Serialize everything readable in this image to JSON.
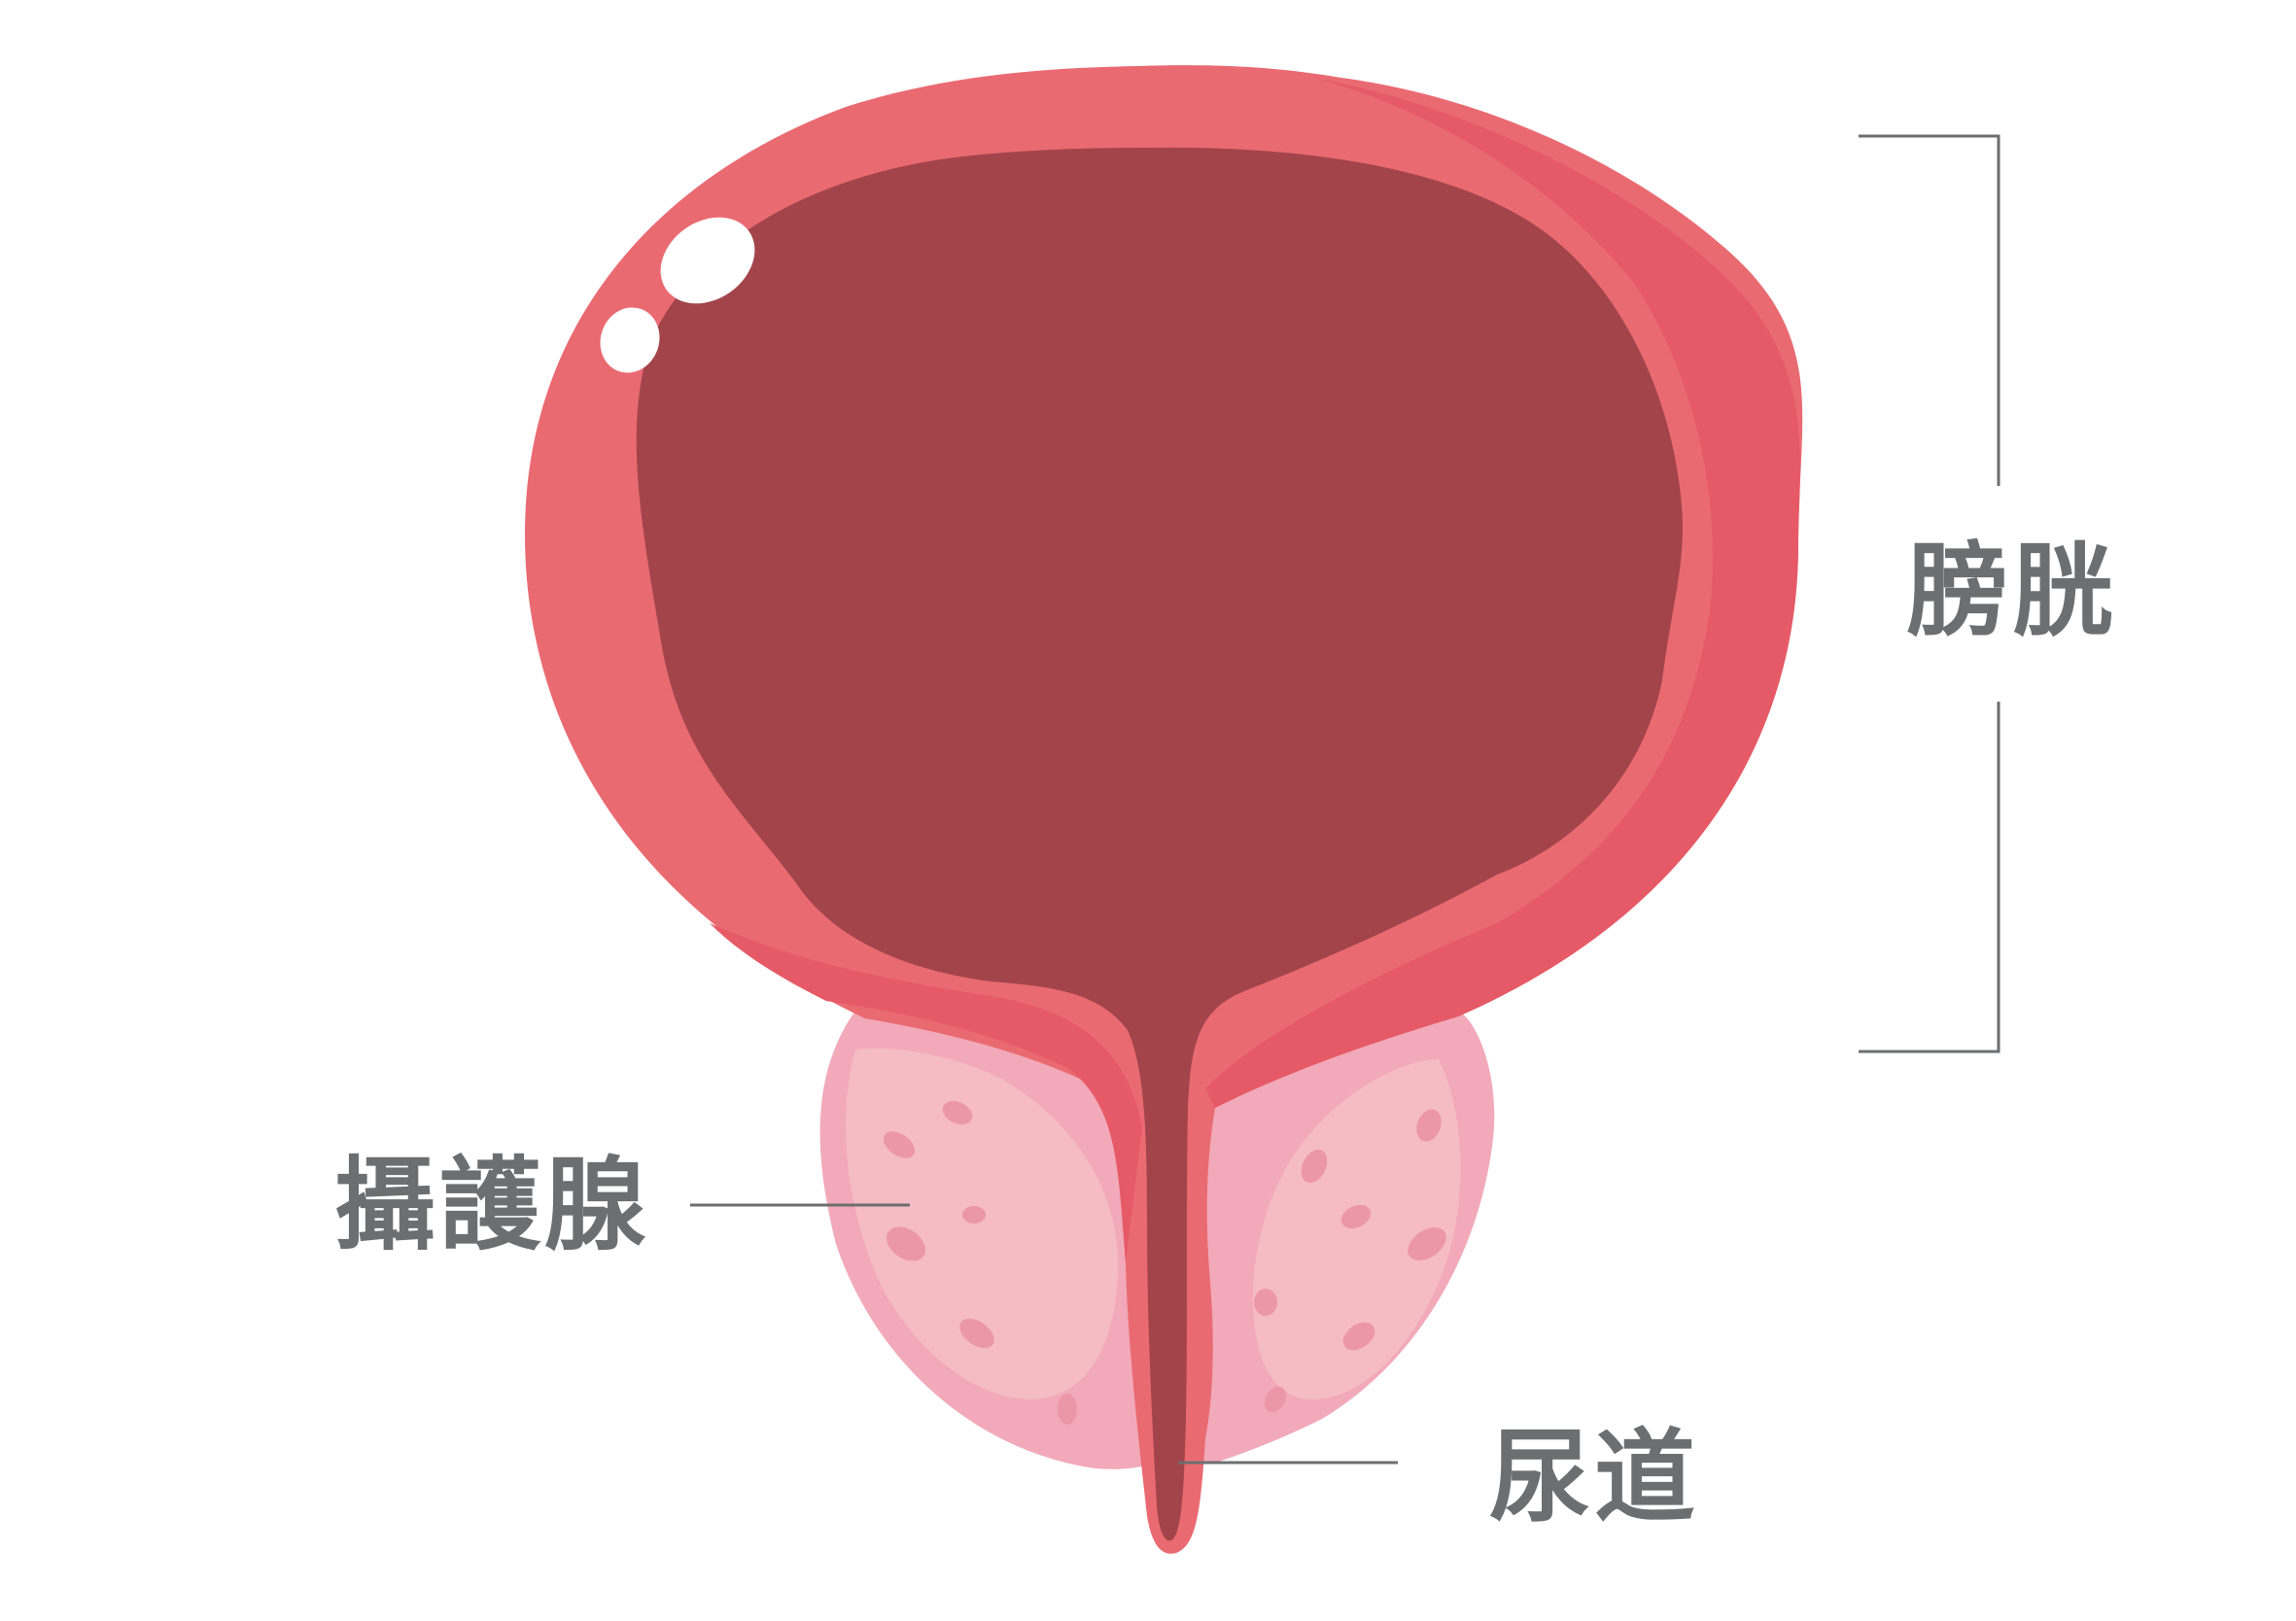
{
  "labels": {
    "bladder": "膀胱",
    "prostate": "攝護腺",
    "urethra": "尿道"
  },
  "colors": {
    "bladder_wall": "#ea6a72",
    "bladder_wall_dark": "#e55a66",
    "bladder_lumen": "#a3444b",
    "prostate_outer": "#f2a9b9",
    "prostate_inner": "#f5bcc3",
    "prostate_spots": "#ec97a8",
    "highlight": "#ffffff",
    "leader_line": "#6d6e70",
    "label_text": "#6d6e70"
  }
}
